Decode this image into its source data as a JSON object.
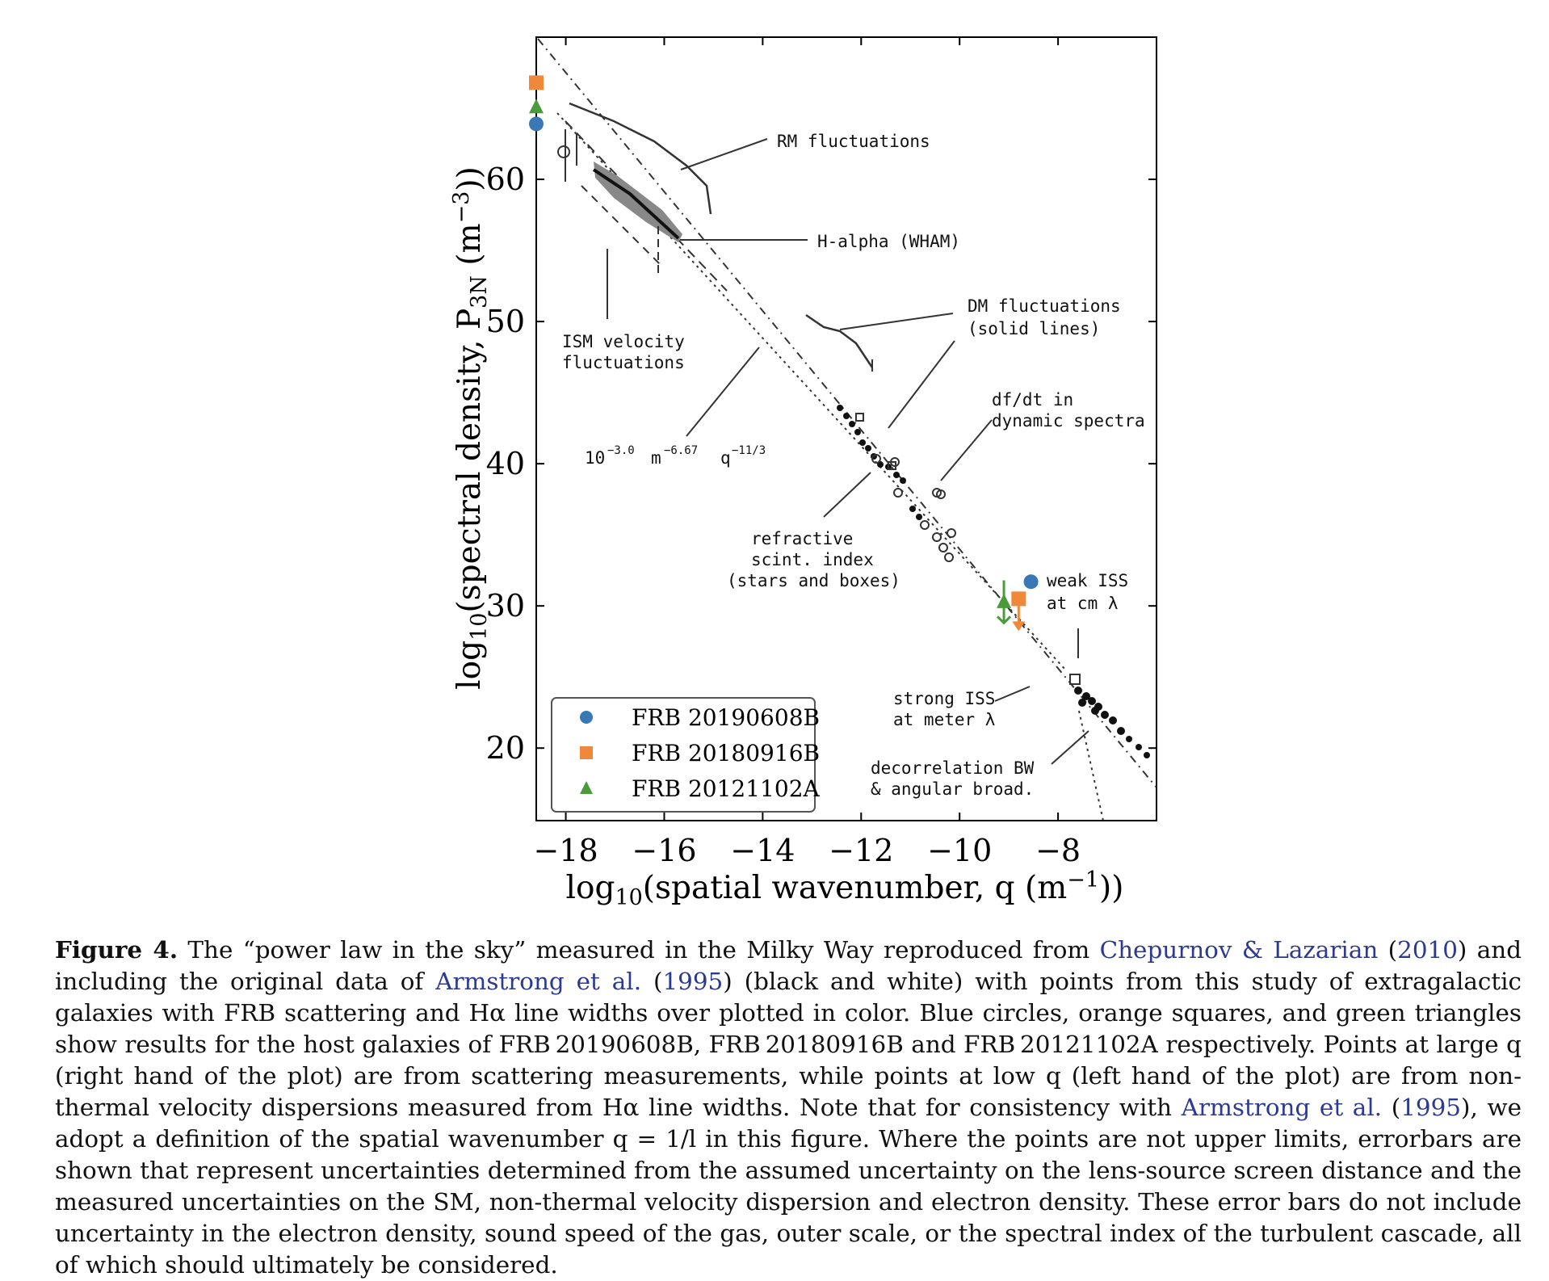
{
  "chart_data": {
    "type": "scatter",
    "xlabel": "log10(spatial wavenumber, q (m⁻¹))",
    "ylabel": "log10(spectral density, P3N (m⁻³))",
    "xlim": [
      -18.6,
      -6.0
    ],
    "ylim": [
      14.9,
      70.0
    ],
    "xticks": [
      -18,
      -16,
      -14,
      -12,
      -10,
      -8
    ],
    "xtick_labels": [
      "−18",
      "−16",
      "−14",
      "−12",
      "−10",
      "−8"
    ],
    "yticks": [
      20,
      30,
      40,
      50,
      60
    ],
    "ytick_labels": [
      "20",
      "30",
      "40",
      "50",
      "60"
    ],
    "grid": false,
    "legend_position": "bottom-left",
    "series": [
      {
        "name": "FRB 20190608B",
        "marker": "circle",
        "color": "#3a78b5",
        "points": [
          {
            "x": -18.6,
            "y": 63.9
          },
          {
            "x": -8.55,
            "y": 31.7
          }
        ]
      },
      {
        "name": "FRB 20180916B",
        "marker": "square",
        "color": "#f0883a",
        "points": [
          {
            "x": -18.6,
            "y": 66.8
          },
          {
            "x": -8.8,
            "y": 30.5,
            "upper_limit": true
          }
        ]
      },
      {
        "name": "FRB 20121102A",
        "marker": "triangle",
        "color": "#4b9a3c",
        "points": [
          {
            "x": -18.6,
            "y": 65.1
          },
          {
            "x": -9.1,
            "y": 30.3,
            "err_low": 1.5,
            "err_high": 1.5
          }
        ]
      }
    ],
    "annotations": [
      "RM fluctuations",
      "H-alpha (WHAM)",
      "DM fluctuations",
      "(solid lines)",
      "df/dt in",
      "dynamic spectra",
      "ISM velocity",
      "fluctuations",
      "10",
      "−3.0",
      "m",
      "−6.67",
      "q",
      "−11/3",
      "refractive",
      "scint. index",
      "(stars and boxes)",
      "weak ISS",
      "at cm λ",
      "strong ISS",
      "at meter λ",
      "decorrelation BW",
      "& angular broad."
    ]
  },
  "caption": {
    "label": "Figure 4.",
    "t1": " The “power law in the sky” measured in the Milky Way reproduced from ",
    "c1": "Chepurnov & Lazarian",
    "t2": " (",
    "c2": "2010",
    "t3": ") and including the original data of ",
    "c3": "Armstrong et al.",
    "t4": " (",
    "c4": "1995",
    "t5": ") (black and white) with points from this study of extragalactic galaxies with FRB scattering and Hα line widths over plotted in color. Blue circles, orange squares, and green triangles show results for the host galaxies of FRB 20190608B, FRB 20180916B and FRB 20121102A respectively. Points at large q (right hand of the plot) are from scattering measurements, while points at low q (left hand of the plot) are from non-thermal velocity dispersions measured from Hα line widths. Note that for consistency with ",
    "c5": "Armstrong et al.",
    "t6": " (",
    "c6": "1995",
    "t7": "), we adopt a definition of the spatial wavenumber q = 1/l in this figure. Where the points are not upper limits, errorbars are shown that represent uncertainties determined from the assumed uncertainty on the lens-source screen distance and the measured uncertainties on the SM, non-thermal velocity dispersion and electron density. These error bars do not include uncertainty in the electron density, sound speed of the gas, outer scale, or the spectral index of the turbulent cascade, all of which should ultimately be considered."
  }
}
